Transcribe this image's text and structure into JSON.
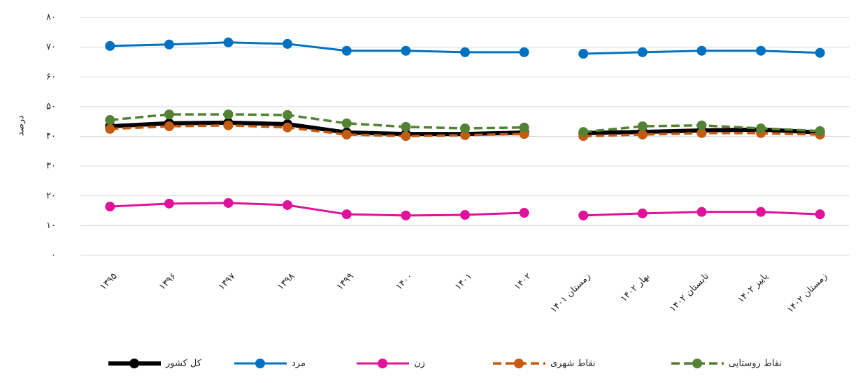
{
  "chart_data": {
    "type": "line",
    "y_label": "درصد",
    "categories": [
      "۱۳۹۵",
      "۱۳۹۶",
      "۱۳۹۷",
      "۱۳۹۸",
      "۱۳۹۹",
      "۱۴۰۰",
      "۱۴۰۱",
      "۱۴۰۲",
      "زمستان ۱۴۰۱",
      "بهار ۱۴۰۲",
      "تابستان ۱۴۰۲",
      "پاییز ۱۴۰۲",
      "زمستان ۱۴۰۲"
    ],
    "ylim": [
      0,
      80
    ],
    "yticks": [
      {
        "value": 0,
        "label": "۰"
      },
      {
        "value": 10,
        "label": "۱۰"
      },
      {
        "value": 20,
        "label": "۲۰"
      },
      {
        "value": 30,
        "label": "۳۰"
      },
      {
        "value": 40,
        "label": "۴۰"
      },
      {
        "value": 50,
        "label": "۵۰"
      },
      {
        "value": 60,
        "label": "۶۰"
      },
      {
        "value": 70,
        "label": "۷۰"
      },
      {
        "value": 80,
        "label": "۸۰"
      }
    ],
    "grid": true,
    "legend": "bottom",
    "series": [
      {
        "name": "کل کشور",
        "color": "#000000",
        "line_style": "solid",
        "line_width": 6,
        "values": [
          43.4,
          44.4,
          44.6,
          44.1,
          41.3,
          40.8,
          40.8,
          41.3,
          41.1,
          41.5,
          42.0,
          42.3,
          41.3
        ]
      },
      {
        "name": "مرد",
        "color": "#0070c0",
        "line_style": "solid",
        "line_width": 3,
        "values": [
          70.4,
          70.9,
          71.6,
          71.1,
          68.8,
          68.8,
          68.3,
          68.3,
          67.8,
          68.3,
          68.8,
          68.8,
          68.1
        ]
      },
      {
        "name": "زن",
        "color": "#e0119a",
        "line_style": "solid",
        "line_width": 3,
        "values": [
          16.4,
          17.4,
          17.6,
          16.9,
          13.8,
          13.4,
          13.6,
          14.3,
          13.4,
          14.1,
          14.6,
          14.6,
          13.8
        ]
      },
      {
        "name": "نقاط شهری",
        "color": "#c55a11",
        "line_style": "dashed",
        "line_width": 3.5,
        "values": [
          42.5,
          43.4,
          43.7,
          43.0,
          40.6,
          40.1,
          40.4,
          40.8,
          40.1,
          40.6,
          41.1,
          41.1,
          40.6
        ]
      },
      {
        "name": "نقاط روستایی",
        "color": "#548235",
        "line_style": "dashed",
        "line_width": 3.5,
        "values": [
          45.5,
          47.4,
          47.4,
          47.2,
          44.4,
          43.2,
          42.7,
          43.0,
          41.5,
          43.4,
          43.7,
          42.7,
          41.8
        ]
      }
    ]
  }
}
